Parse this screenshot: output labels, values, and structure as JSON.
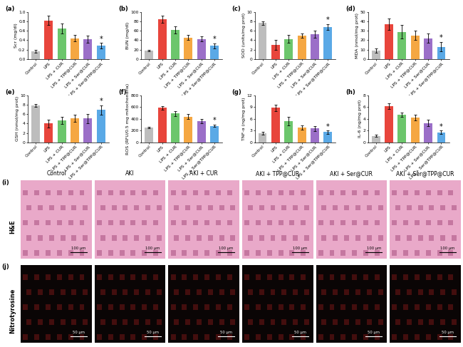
{
  "chart_data": [
    {
      "type": "bar",
      "title": "(a)",
      "y_label": "Scr (mg/dl)",
      "categories": [
        "Control",
        "LPS",
        "LPS + CUR",
        "LPS + TPP@CUR",
        "LPS + Ser@CUR",
        "LPS + Ser@TPP@CUR"
      ],
      "values": [
        0.17,
        0.82,
        0.65,
        0.44,
        0.42,
        0.28
      ],
      "errors": [
        0.03,
        0.1,
        0.1,
        0.07,
        0.08,
        0.06
      ],
      "colors": [
        "#bdbdbd",
        "#e8453c",
        "#6cc66c",
        "#f5a742",
        "#9b6fc8",
        "#5aa9e6"
      ],
      "ylim": [
        0,
        1.0
      ],
      "yticks": [
        {
          "value": 0,
          "label": "0.0"
        },
        {
          "value": 0.2,
          "label": "0.2"
        },
        {
          "value": 0.4,
          "label": "0.4"
        },
        {
          "value": 0.6,
          "label": "0.6"
        },
        {
          "value": 0.8,
          "label": "0.8"
        },
        {
          "value": 1.0,
          "label": "1.0"
        }
      ],
      "annotations": [
        {
          "category": "LPS + Ser@TPP@CUR",
          "text": "*"
        }
      ]
    },
    {
      "type": "bar",
      "title": "(b)",
      "y_label": "BUN (mg/dl)",
      "categories": [
        "Control",
        "LPS",
        "LPS + CUR",
        "LPS + TPP@CUR",
        "LPS + Ser@CUR",
        "LPS + Ser@TPP@CUR"
      ],
      "values": [
        18,
        85,
        62,
        46,
        43,
        28
      ],
      "errors": [
        1,
        7,
        7,
        6,
        5,
        5
      ],
      "colors": [
        "#bdbdbd",
        "#e8453c",
        "#6cc66c",
        "#f5a742",
        "#9b6fc8",
        "#5aa9e6"
      ],
      "ylim": [
        0,
        100
      ],
      "yticks": [
        0,
        20,
        40,
        60,
        80,
        100
      ],
      "annotations": [
        {
          "category": "LPS + Ser@TPP@CUR",
          "text": "*"
        }
      ]
    },
    {
      "type": "bar",
      "title": "(c)",
      "y_label": "SOD (units/mg prot)",
      "categories": [
        "Control",
        "LPS",
        "LPS + CUR",
        "LPS + TPP@CUR",
        "LPS + Ser@CUR",
        "LPS + Ser@TPP@CUR"
      ],
      "values": [
        7.7,
        3.0,
        4.3,
        5.0,
        5.3,
        6.8
      ],
      "errors": [
        0.4,
        1.0,
        0.8,
        0.4,
        0.7,
        0.6
      ],
      "colors": [
        "#bdbdbd",
        "#e8453c",
        "#6cc66c",
        "#f5a742",
        "#9b6fc8",
        "#5aa9e6"
      ],
      "ylim": [
        0,
        10
      ],
      "yticks": [
        0,
        2,
        4,
        6,
        8,
        10
      ],
      "annotations": [
        {
          "category": "LPS + Ser@TPP@CUR",
          "text": "*"
        }
      ]
    },
    {
      "type": "bar",
      "title": "(d)",
      "y_label": "MDA (nmol/mg prot)",
      "categories": [
        "Control",
        "LPS",
        "LPS + CUR",
        "LPS + TPP@CUR",
        "LPS + Ser@CUR",
        "LPS + Ser@TPP@CUR"
      ],
      "values": [
        9,
        37,
        29,
        25,
        22,
        13
      ],
      "errors": [
        2.5,
        6,
        7,
        5,
        5,
        5
      ],
      "colors": [
        "#bdbdbd",
        "#e8453c",
        "#6cc66c",
        "#f5a742",
        "#9b6fc8",
        "#5aa9e6"
      ],
      "ylim": [
        0,
        50
      ],
      "yticks": [
        0,
        10,
        20,
        30,
        40,
        50
      ],
      "annotations": [
        {
          "category": "LPS + Ser@TPP@CUR",
          "text": "*"
        }
      ]
    },
    {
      "type": "bar",
      "title": "(e)",
      "y_label": "GSH (nmol/mg prot)",
      "categories": [
        "Control",
        "LPS",
        "LPS + CUR",
        "LPS + TPP@CUR",
        "LPS + Ser@CUR",
        "LPS + Ser@TPP@CUR"
      ],
      "values": [
        7.8,
        4.0,
        4.7,
        5.1,
        5.1,
        6.9
      ],
      "errors": [
        0.3,
        0.8,
        0.8,
        0.8,
        1.0,
        1.0
      ],
      "colors": [
        "#bdbdbd",
        "#e8453c",
        "#6cc66c",
        "#f5a742",
        "#9b6fc8",
        "#5aa9e6"
      ],
      "ylim": [
        0,
        10
      ],
      "yticks": [
        0,
        2,
        4,
        6,
        8,
        10
      ],
      "annotations": [
        {
          "category": "LPS + Ser@TPP@CUR",
          "text": "*"
        }
      ]
    },
    {
      "type": "bar",
      "title": "(f)",
      "y_label": "ROS (RFU/0.5 mg mitochondria)",
      "categories": [
        "Control",
        "LPS",
        "LPS + CUR",
        "LPS + TPP@CUR",
        "LPS + Ser@CUR",
        "LPS + Ser@TPP@CUR"
      ],
      "values": [
        250,
        590,
        490,
        440,
        360,
        280
      ],
      "errors": [
        15,
        30,
        45,
        45,
        40,
        20
      ],
      "colors": [
        "#bdbdbd",
        "#e8453c",
        "#6cc66c",
        "#f5a742",
        "#9b6fc8",
        "#5aa9e6"
      ],
      "ylim": [
        0,
        800
      ],
      "yticks": [
        0,
        200,
        400,
        600,
        800
      ],
      "annotations": [
        {
          "category": "LPS + Ser@TPP@CUR",
          "text": "*"
        }
      ]
    },
    {
      "type": "bar",
      "title": "(g)",
      "y_label": "TNF-α (ng/mg prot)",
      "categories": [
        "Control",
        "LPS",
        "LPS + CUR",
        "LPS + TPP@CUR",
        "LPS + Ser@CUR",
        "LPS + Ser@TPP@CUR"
      ],
      "values": [
        2.3,
        8.8,
        5.5,
        3.8,
        3.5,
        2.6
      ],
      "errors": [
        0.4,
        0.9,
        1.1,
        0.6,
        0.6,
        0.4
      ],
      "colors": [
        "#bdbdbd",
        "#e8453c",
        "#6cc66c",
        "#f5a742",
        "#9b6fc8",
        "#5aa9e6"
      ],
      "ylim": [
        0,
        12
      ],
      "yticks": [
        0,
        3,
        6,
        9,
        12
      ],
      "annotations": [
        {
          "category": "LPS + Ser@TPP@CUR",
          "text": "*"
        }
      ]
    },
    {
      "type": "bar",
      "title": "(h)",
      "y_label": "IL-6 (ng/mg prot)",
      "categories": [
        "Control",
        "LPS",
        "LPS + CUR",
        "LPS + TPP@CUR",
        "LPS + Ser@CUR",
        "LPS + Ser@TPP@CUR"
      ],
      "values": [
        1.1,
        6.2,
        4.7,
        4.2,
        3.3,
        1.7
      ],
      "errors": [
        0.2,
        0.5,
        0.4,
        0.5,
        0.5,
        0.3
      ],
      "colors": [
        "#bdbdbd",
        "#e8453c",
        "#6cc66c",
        "#f5a742",
        "#9b6fc8",
        "#5aa9e6"
      ],
      "ylim": [
        0,
        8
      ],
      "yticks": [
        0,
        2,
        4,
        6,
        8
      ],
      "annotations": [
        {
          "category": "LPS + Ser@TPP@CUR",
          "text": "*"
        }
      ]
    }
  ],
  "images": {
    "columns": [
      "Control",
      "AKI",
      "AKI + CUR",
      "AKI + TPP@CUR",
      "AKI + Ser@CUR",
      "AKI + Ser@TPP@CUR"
    ],
    "rows": [
      {
        "panel": "(i)",
        "label": "H&E",
        "scale_bar": "100 μm"
      },
      {
        "panel": "(j)",
        "label": "Nitrotyrosine",
        "scale_bar": "50 μm"
      }
    ]
  }
}
